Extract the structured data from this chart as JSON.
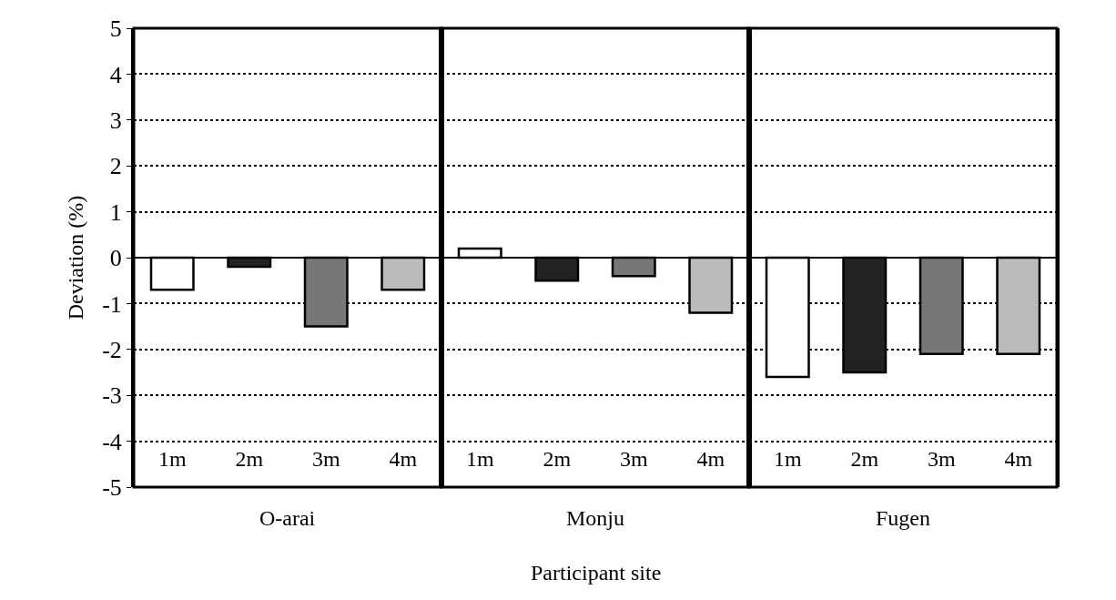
{
  "chart_data": [
    {
      "type": "bar",
      "xlabel": "O-arai",
      "ylabel": "Deviation (%)",
      "categories": [
        "1m",
        "2m",
        "3m",
        "4m"
      ],
      "values": [
        -0.7,
        -0.2,
        -1.5,
        -0.7
      ],
      "colors": [
        "#ffffff",
        "#222222",
        "#777777",
        "#bbbbbb"
      ],
      "ylim": [
        -5,
        5
      ],
      "yticks": [
        -5,
        -4,
        -3,
        -2,
        -1,
        0,
        1,
        2,
        3,
        4,
        5
      ],
      "grid": "y",
      "ref_lines": [
        {
          "axis": "y",
          "value": 0,
          "color": "#000000",
          "line_style": "solid"
        }
      ]
    },
    {
      "type": "bar",
      "xlabel": "Monju",
      "categories": [
        "1m",
        "2m",
        "3m",
        "4m"
      ],
      "values": [
        0.2,
        -0.5,
        -0.4,
        -1.2
      ],
      "colors": [
        "#ffffff",
        "#222222",
        "#777777",
        "#bbbbbb"
      ],
      "ylim": [
        -5,
        5
      ],
      "yticks": [
        -5,
        -4,
        -3,
        -2,
        -1,
        0,
        1,
        2,
        3,
        4,
        5
      ],
      "grid": "y",
      "tick_labels": "x",
      "annotations": [
        "Participant site"
      ],
      "ref_lines": [
        {
          "axis": "y",
          "value": 0,
          "color": "#000000",
          "line_style": "solid"
        }
      ]
    },
    {
      "type": "bar",
      "xlabel": "Fugen",
      "categories": [
        "1m",
        "2m",
        "3m",
        "4m"
      ],
      "values": [
        -2.6,
        -2.5,
        -2.1,
        -2.1
      ],
      "colors": [
        "#ffffff",
        "#222222",
        "#777777",
        "#bbbbbb"
      ],
      "ylim": [
        -5,
        5
      ],
      "yticks": [
        -5,
        -4,
        -3,
        -2,
        -1,
        0,
        1,
        2,
        3,
        4,
        5
      ],
      "grid": "y",
      "tick_labels": "x",
      "ref_lines": [
        {
          "axis": "y",
          "value": 0,
          "color": "#000000",
          "line_style": "solid"
        }
      ]
    }
  ]
}
